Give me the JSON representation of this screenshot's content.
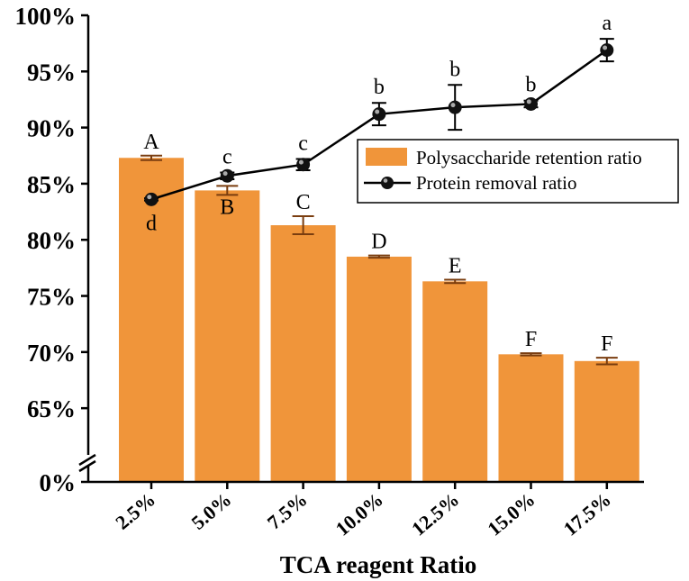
{
  "chart_data": {
    "type": "bar",
    "title": "",
    "xlabel": "TCA reagent Ratio",
    "ylabel": "",
    "categories": [
      "2.5%",
      "5.0%",
      "7.5%",
      "10.0%",
      "12.5%",
      "15.0%",
      "17.5%"
    ],
    "y_axis": {
      "break": true,
      "ticks": [
        "0%",
        "65%",
        "70%",
        "75%",
        "80%",
        "85%",
        "90%",
        "95%",
        "100%"
      ],
      "lower_segment_range": [
        0,
        61
      ],
      "upper_segment_range": [
        61,
        100
      ]
    },
    "series": [
      {
        "name": "Polysaccharide retention ratio",
        "type": "bar",
        "color": "#f0953a",
        "values": [
          87.3,
          84.4,
          81.3,
          78.5,
          76.3,
          69.8,
          69.2
        ],
        "errors": [
          0.2,
          0.4,
          0.8,
          0.1,
          0.15,
          0.1,
          0.3
        ],
        "significance": [
          "A",
          "B",
          "C",
          "D",
          "E",
          "F",
          "F"
        ]
      },
      {
        "name": "Protein removal ratio",
        "type": "line",
        "color": "#000000",
        "values": [
          83.6,
          85.7,
          86.7,
          91.2,
          91.8,
          92.1,
          96.9
        ],
        "errors": [
          0.1,
          0.3,
          0.5,
          1.0,
          2.0,
          0.3,
          1.0
        ],
        "significance": [
          "d",
          "c",
          "c",
          "b",
          "b",
          "b",
          "a"
        ]
      }
    ]
  }
}
